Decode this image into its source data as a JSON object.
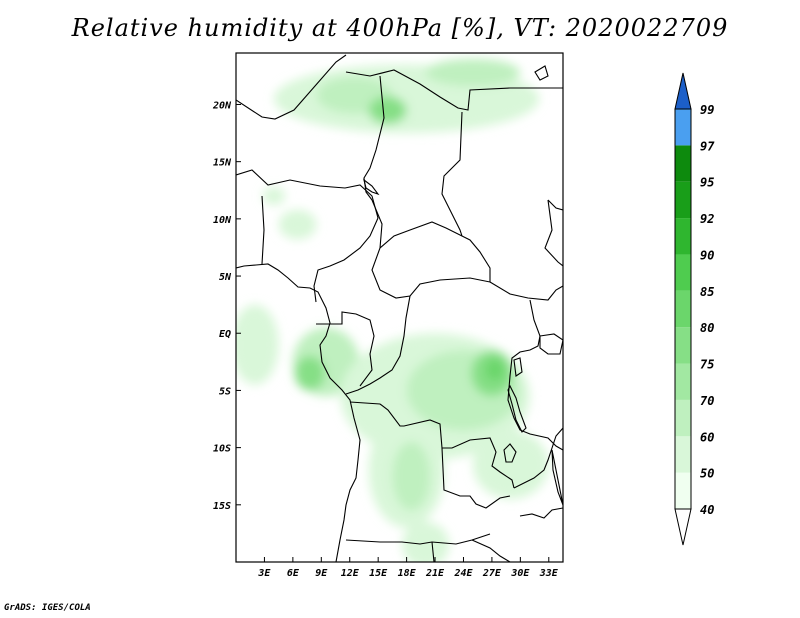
{
  "title": "Relative humidity at 400hPa [%], VT: 2020022709",
  "credit": "GrADS: IGES/COLA",
  "map": {
    "lon_range": [
      0,
      34.5
    ],
    "lat_range": [
      -20,
      24.5
    ],
    "lon_ticks": [
      {
        "value": 3,
        "label": "3E"
      },
      {
        "value": 6,
        "label": "6E"
      },
      {
        "value": 9,
        "label": "9E"
      },
      {
        "value": 12,
        "label": "12E"
      },
      {
        "value": 15,
        "label": "15E"
      },
      {
        "value": 18,
        "label": "18E"
      },
      {
        "value": 21,
        "label": "21E"
      },
      {
        "value": 24,
        "label": "24E"
      },
      {
        "value": 27,
        "label": "27E"
      },
      {
        "value": 30,
        "label": "30E"
      },
      {
        "value": 33,
        "label": "33E"
      }
    ],
    "lat_ticks": [
      {
        "value": 20,
        "label": "20N"
      },
      {
        "value": 15,
        "label": "15N"
      },
      {
        "value": 10,
        "label": "10N"
      },
      {
        "value": 5,
        "label": "5N"
      },
      {
        "value": 0,
        "label": "EQ"
      },
      {
        "value": -5,
        "label": "5S"
      },
      {
        "value": -10,
        "label": "10S"
      },
      {
        "value": -15,
        "label": "15S"
      }
    ]
  },
  "colorbar": {
    "levels": [
      {
        "label": "40",
        "color": "#f0fff0"
      },
      {
        "label": "50",
        "color": "#d9f7d9"
      },
      {
        "label": "60",
        "color": "#bff0bf"
      },
      {
        "label": "70",
        "color": "#a2e8a2"
      },
      {
        "label": "75",
        "color": "#86df86"
      },
      {
        "label": "80",
        "color": "#6bd66b"
      },
      {
        "label": "85",
        "color": "#4fcc4f"
      },
      {
        "label": "90",
        "color": "#2fb62f"
      },
      {
        "label": "92",
        "color": "#199e19"
      },
      {
        "label": "95",
        "color": "#0d8a0d"
      },
      {
        "label": "97",
        "color": "#4a9ff0"
      },
      {
        "label": "99",
        "color": "#2c7ce0"
      }
    ],
    "below_color": "#ffffff",
    "above_color": "#1c5fc8"
  },
  "humidity_regions": [
    {
      "name": "sahel-band",
      "level": "50",
      "lon": 18,
      "lat": 20.5,
      "rx": 14,
      "ry": 3
    },
    {
      "name": "sahel-core-1",
      "level": "60",
      "lon": 12.5,
      "lat": 20.8,
      "rx": 4,
      "ry": 1.6
    },
    {
      "name": "sahel-core-2",
      "level": "75",
      "lon": 16,
      "lat": 19.5,
      "rx": 2,
      "ry": 1.2
    },
    {
      "name": "sahel-core-3",
      "level": "60",
      "lon": 25,
      "lat": 22.8,
      "rx": 5,
      "ry": 1.2
    },
    {
      "name": "west-patch",
      "level": "50",
      "lon": 6.5,
      "lat": 9.5,
      "rx": 2,
      "ry": 1.3
    },
    {
      "name": "west-patch-2",
      "level": "50",
      "lon": 4,
      "lat": 12,
      "rx": 1.2,
      "ry": 0.8
    },
    {
      "name": "gulf-guinea",
      "level": "50",
      "lon": 2,
      "lat": -1,
      "rx": 2.5,
      "ry": 3.5
    },
    {
      "name": "gabon",
      "level": "60",
      "lon": 9.5,
      "lat": -2.5,
      "rx": 3.5,
      "ry": 3
    },
    {
      "name": "gabon-core",
      "level": "75",
      "lon": 7.8,
      "lat": -3.5,
      "rx": 1.6,
      "ry": 1.5
    },
    {
      "name": "congo-basin",
      "level": "50",
      "lon": 21,
      "lat": -5.5,
      "rx": 10,
      "ry": 5.5
    },
    {
      "name": "congo-mid",
      "level": "60",
      "lon": 24,
      "lat": -5,
      "rx": 6,
      "ry": 3.5
    },
    {
      "name": "congo-core",
      "level": "75",
      "lon": 27,
      "lat": -3.5,
      "rx": 2.2,
      "ry": 2
    },
    {
      "name": "congo-peak",
      "level": "80",
      "lon": 27.3,
      "lat": -3.2,
      "rx": 1,
      "ry": 1
    },
    {
      "name": "angola",
      "level": "50",
      "lon": 18,
      "lat": -12,
      "rx": 4,
      "ry": 5
    },
    {
      "name": "angola-core",
      "level": "60",
      "lon": 18.5,
      "lat": -12.5,
      "rx": 2,
      "ry": 3
    },
    {
      "name": "zambia",
      "level": "50",
      "lon": 29,
      "lat": -11.5,
      "rx": 4,
      "ry": 3
    },
    {
      "name": "namibia-tail",
      "level": "50",
      "lon": 20,
      "lat": -18.5,
      "rx": 2.5,
      "ry": 2
    }
  ]
}
